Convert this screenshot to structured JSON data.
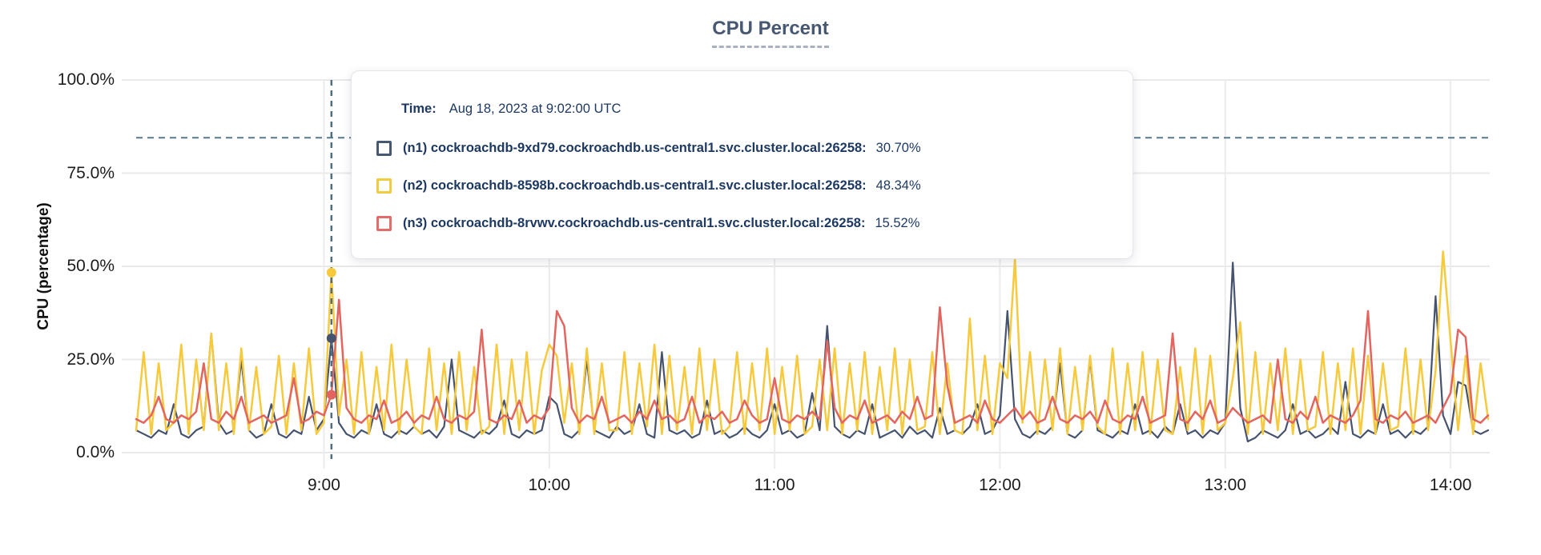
{
  "tooltip": {
    "time_label": "Time:",
    "time_value": "Aug 18, 2023 at 9:02:00 UTC",
    "rows": [
      {
        "label": "(n1) cockroachdb-9xd79.cockroachdb.us-central1.svc.cluster.local:26258:",
        "value": "30.70%",
        "color": "#475872"
      },
      {
        "label": "(n2) cockroachdb-8598b.cockroachdb.us-central1.svc.cluster.local:26258:",
        "value": "48.34%",
        "color": "#f2cb3f"
      },
      {
        "label": "(n3) cockroachdb-8rvwv.cockroachdb.us-central1.svc.cluster.local:26258:",
        "value": "15.52%",
        "color": "#e06d68"
      }
    ]
  },
  "chart_data": {
    "type": "line",
    "title": "CPU Percent",
    "ylabel": "CPU (percentage)",
    "xlabel": "",
    "ylim": [
      0,
      100
    ],
    "y_ticks": [
      {
        "label": "100.0%",
        "value": 100
      },
      {
        "label": "75.0%",
        "value": 75
      },
      {
        "label": "50.0%",
        "value": 50
      },
      {
        "label": "25.0%",
        "value": 25
      },
      {
        "label": "0.0%",
        "value": 0
      }
    ],
    "x_ticks": [
      {
        "label": "9:00",
        "minutes": 540
      },
      {
        "label": "10:00",
        "minutes": 600
      },
      {
        "label": "11:00",
        "minutes": 660
      },
      {
        "label": "12:00",
        "minutes": 720
      },
      {
        "label": "13:00",
        "minutes": 780
      },
      {
        "label": "14:00",
        "minutes": 840
      }
    ],
    "x_start_min": 490,
    "x_end_min": 850,
    "x_step_min": 2,
    "grid": true,
    "legend_position": "tooltip",
    "threshold_line": {
      "value_percent": 84.5,
      "style": "dashed",
      "color": "#567b8f"
    },
    "hover": {
      "time_min": 542,
      "index": 26,
      "time_text": "Aug 18, 2023 at 9:02:00 UTC",
      "values": [
        30.7,
        48.34,
        15.52
      ]
    },
    "series": [
      {
        "name": "(n1) cockroachdb-9xd79.cockroachdb.us-central1.svc.cluster.local:26258",
        "color": "#46536e",
        "values": [
          6,
          5,
          4,
          6,
          5,
          13,
          5,
          4,
          6,
          7,
          32,
          8,
          5,
          6,
          25,
          6,
          4,
          5,
          13,
          5,
          4,
          6,
          5,
          15,
          6,
          9,
          30.7,
          8,
          5,
          4,
          6,
          5,
          13,
          5,
          4,
          6,
          5,
          7,
          5,
          6,
          4,
          7,
          25,
          6,
          5,
          4,
          6,
          5,
          7,
          14,
          5,
          4,
          6,
          5,
          6,
          15,
          13,
          5,
          4,
          6,
          25,
          6,
          5,
          4,
          7,
          5,
          6,
          13,
          5,
          4,
          27,
          6,
          5,
          6,
          4,
          5,
          14,
          5,
          6,
          4,
          5,
          7,
          5,
          4,
          6,
          13,
          5,
          6,
          4,
          5,
          16,
          6,
          34,
          7,
          5,
          4,
          6,
          5,
          13,
          4,
          5,
          6,
          4,
          7,
          5,
          6,
          4,
          12,
          5,
          6,
          5,
          7,
          13,
          5,
          6,
          10,
          38,
          9,
          5,
          4,
          6,
          5,
          7,
          24,
          5,
          4,
          6,
          25,
          6,
          5,
          4,
          6,
          5,
          13,
          5,
          6,
          4,
          7,
          5,
          13,
          5,
          6,
          4,
          6,
          5,
          8,
          51,
          12,
          3,
          4,
          6,
          5,
          4,
          6,
          13,
          5,
          6,
          4,
          5,
          7,
          5,
          19,
          5,
          4,
          6,
          5,
          13,
          5,
          6,
          4,
          6,
          5,
          7,
          42,
          10,
          5,
          19,
          18,
          6,
          5,
          6
        ]
      },
      {
        "name": "(n2) cockroachdb-8598b.cockroachdb.us-central1.svc.cluster.local:26258",
        "color": "#f7ca3e",
        "values": [
          6,
          27,
          5,
          24,
          6,
          8,
          29,
          5,
          25,
          6,
          32,
          6,
          24,
          5,
          28,
          6,
          23,
          5,
          7,
          26,
          5,
          24,
          6,
          28,
          5,
          8,
          48.34,
          10,
          25,
          5,
          27,
          5,
          23,
          6,
          29,
          5,
          25,
          7,
          5,
          28,
          6,
          24,
          5,
          27,
          6,
          23,
          5,
          7,
          29,
          5,
          25,
          6,
          27,
          5,
          22,
          29,
          26,
          8,
          24,
          5,
          28,
          5,
          24,
          6,
          6,
          27,
          5,
          24,
          7,
          29,
          5,
          26,
          6,
          23,
          5,
          28,
          6,
          25,
          5,
          7,
          27,
          5,
          24,
          6,
          28,
          5,
          23,
          6,
          26,
          5,
          7,
          25,
          6,
          28,
          5,
          24,
          6,
          27,
          5,
          23,
          6,
          28,
          5,
          25,
          6,
          7,
          27,
          5,
          24,
          6,
          5,
          36,
          6,
          26,
          5,
          24,
          20,
          52,
          8,
          27,
          5,
          25,
          6,
          28,
          5,
          23,
          6,
          26,
          7,
          5,
          28,
          5,
          24,
          6,
          27,
          5,
          25,
          6,
          5,
          23,
          6,
          28,
          5,
          26,
          6,
          8,
          20,
          35,
          5,
          27,
          5,
          24,
          6,
          28,
          5,
          25,
          6,
          7,
          27,
          5,
          24,
          6,
          28,
          5,
          26,
          5,
          24,
          6,
          7,
          28,
          5,
          25,
          6,
          22,
          54,
          30,
          6,
          26,
          5,
          24,
          9
        ]
      },
      {
        "name": "(n3) cockroachdb-8rvwv.cockroachdb.us-central1.svc.cluster.local:26258",
        "color": "#e2655f",
        "values": [
          9,
          8,
          10,
          15,
          9,
          8,
          10,
          9,
          11,
          24,
          9,
          8,
          11,
          9,
          15,
          8,
          9,
          10,
          8,
          9,
          10,
          20,
          8,
          9,
          11,
          10,
          15.52,
          41,
          12,
          9,
          8,
          10,
          9,
          14,
          8,
          9,
          11,
          8,
          10,
          9,
          15,
          9,
          8,
          10,
          9,
          11,
          33,
          9,
          8,
          10,
          9,
          14,
          8,
          10,
          9,
          12,
          38,
          34,
          12,
          8,
          10,
          9,
          15,
          8,
          9,
          10,
          8,
          11,
          9,
          14,
          9,
          10,
          8,
          9,
          15,
          8,
          10,
          9,
          11,
          8,
          9,
          14,
          10,
          8,
          9,
          20,
          9,
          8,
          10,
          9,
          11,
          9,
          30,
          12,
          8,
          10,
          9,
          14,
          8,
          9,
          10,
          8,
          11,
          9,
          15,
          9,
          10,
          39,
          18,
          8,
          9,
          10,
          8,
          14,
          9,
          8,
          10,
          12,
          9,
          11,
          8,
          9,
          15,
          9,
          8,
          10,
          9,
          11,
          8,
          14,
          9,
          8,
          10,
          9,
          15,
          8,
          9,
          10,
          32,
          9,
          8,
          11,
          9,
          14,
          8,
          9,
          12,
          10,
          8,
          9,
          10,
          8,
          25,
          9,
          8,
          11,
          9,
          15,
          8,
          10,
          9,
          8,
          10,
          14,
          38,
          9,
          8,
          10,
          9,
          11,
          8,
          9,
          10,
          8,
          12,
          16,
          33,
          31,
          9,
          8,
          10
        ]
      }
    ],
    "colors": {
      "grid": "#e9e9e9",
      "hour_grid": "#ececec",
      "hover_line": "#4f6e80",
      "title": "#475872",
      "tooltip_text": "#1d3963"
    }
  }
}
